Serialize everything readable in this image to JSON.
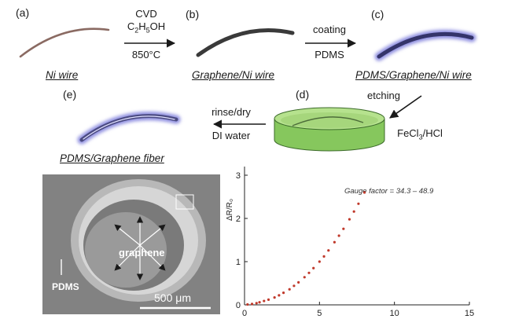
{
  "panels": {
    "a": {
      "label": "(a)",
      "caption": "Ni wire"
    },
    "b": {
      "label": "(b)",
      "caption": "Graphene/Ni wire"
    },
    "c": {
      "label": "(c)",
      "caption": "PDMS/Graphene/Ni wire"
    },
    "d": {
      "label": "(d)"
    },
    "e": {
      "label": "(e)",
      "caption": "PDMS/Graphene fiber"
    }
  },
  "steps": {
    "cvd": {
      "line1": "CVD",
      "line2": "C",
      "line2_sub": "2",
      "line2_rest": "H",
      "line2_sub2": "5",
      "line2_end": "OH",
      "line3": "850°C"
    },
    "coating": {
      "line1": "coating",
      "line2": "PDMS"
    },
    "etching": {
      "line1": "etching",
      "reagent": "FeCl",
      "reagent_sub": "3",
      "reagent_end": "/HCl"
    },
    "rinse": {
      "line1": "rinse/dry",
      "line2": "DI water"
    }
  },
  "sem": {
    "label_graphene": "graphene",
    "label_pdms": "PDMS",
    "scale_bar": "500 μm"
  },
  "colors": {
    "ni_wire": "#8a6a62",
    "graphene_wire": "#3a3a3a",
    "pdms_glow": "#8f8fe0",
    "dish_fill": "#8fcf6a",
    "data_points": "#c0392b"
  },
  "chart_data": {
    "type": "scatter",
    "annotation": "Gauge factor = 34.3 – 48.9",
    "ylabel": "ΔR/R₀",
    "xlim": [
      0,
      15
    ],
    "ylim": [
      0,
      3.2
    ],
    "x_ticks": [
      0,
      5,
      10,
      15
    ],
    "y_ticks": [
      0,
      1,
      2,
      3
    ],
    "series": [
      {
        "x": [
          0.2,
          0.5,
          0.8,
          1.0,
          1.3,
          1.6,
          2.0,
          2.3,
          2.6,
          3.0,
          3.3,
          3.6,
          4.0,
          4.3,
          4.6,
          5.0,
          5.3,
          5.6,
          6.0,
          6.3,
          6.6,
          7.0,
          7.3,
          7.6,
          8.0
        ],
        "y": [
          0.01,
          0.02,
          0.04,
          0.06,
          0.09,
          0.12,
          0.17,
          0.22,
          0.28,
          0.36,
          0.44,
          0.52,
          0.64,
          0.74,
          0.85,
          1.0,
          1.12,
          1.26,
          1.45,
          1.6,
          1.76,
          1.98,
          2.16,
          2.34,
          2.6
        ]
      }
    ]
  }
}
